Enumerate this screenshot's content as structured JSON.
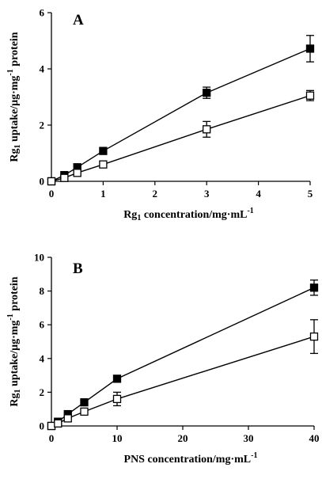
{
  "chart_data": [
    {
      "type": "line",
      "panel_label": "A",
      "xlabel": "Rg<sub>1</sub> concentration/mg·mL<sup>-1</sup>",
      "xlabel_parts": [
        {
          "t": "Rg",
          "k": "n"
        },
        {
          "t": "1",
          "k": "sub"
        },
        {
          "t": " concentration/mg·mL",
          "k": "n"
        },
        {
          "t": "-1",
          "k": "sup"
        }
      ],
      "ylabel_parts": [
        {
          "t": "Rg",
          "k": "n"
        },
        {
          "t": "1",
          "k": "sub"
        },
        {
          "t": " uptake/μg·mg",
          "k": "n"
        },
        {
          "t": "-1",
          "k": "sup"
        },
        {
          "t": " protein",
          "k": "n"
        }
      ],
      "xlim": [
        0,
        5
      ],
      "ylim": [
        0,
        6
      ],
      "xticks": [
        0,
        1,
        2,
        3,
        4,
        5
      ],
      "yticks": [
        0,
        2,
        4,
        6
      ],
      "series": [
        {
          "marker": "filled-square",
          "x": [
            0,
            0.25,
            0.5,
            1,
            3,
            5
          ],
          "y": [
            0,
            0.22,
            0.5,
            1.08,
            3.15,
            4.72
          ],
          "err": [
            0,
            0,
            0.08,
            0.1,
            0.2,
            0.47
          ]
        },
        {
          "marker": "open-square",
          "x": [
            0,
            0.25,
            0.5,
            1,
            3,
            5
          ],
          "y": [
            0,
            0.12,
            0.3,
            0.6,
            1.85,
            3.05
          ],
          "err": [
            0,
            0,
            0.05,
            0.08,
            0.28,
            0.18
          ]
        }
      ]
    },
    {
      "type": "line",
      "panel_label": "B",
      "xlabel_parts": [
        {
          "t": "PNS concentration/mg·mL",
          "k": "n"
        },
        {
          "t": "-1",
          "k": "sup"
        }
      ],
      "ylabel_parts": [
        {
          "t": "Rg",
          "k": "n"
        },
        {
          "t": "1",
          "k": "sub"
        },
        {
          "t": " uptake/μg·mg",
          "k": "n"
        },
        {
          "t": "-1",
          "k": "sup"
        },
        {
          "t": " protein",
          "k": "n"
        }
      ],
      "xlim": [
        0,
        40
      ],
      "ylim": [
        0,
        10
      ],
      "xticks": [
        0,
        10,
        20,
        30,
        40
      ],
      "yticks": [
        0,
        2,
        4,
        6,
        8,
        10
      ],
      "series": [
        {
          "marker": "filled-square",
          "x": [
            0,
            1,
            2.5,
            5,
            10,
            40
          ],
          "y": [
            0,
            0.25,
            0.7,
            1.4,
            2.8,
            8.2
          ],
          "err": [
            0,
            0,
            0.1,
            0.12,
            0.15,
            0.45
          ]
        },
        {
          "marker": "open-square",
          "x": [
            0,
            1,
            2.5,
            5,
            10,
            40
          ],
          "y": [
            0,
            0.15,
            0.45,
            0.85,
            1.6,
            5.3
          ],
          "err": [
            0,
            0,
            0.08,
            0.15,
            0.4,
            1.0
          ]
        }
      ]
    }
  ]
}
